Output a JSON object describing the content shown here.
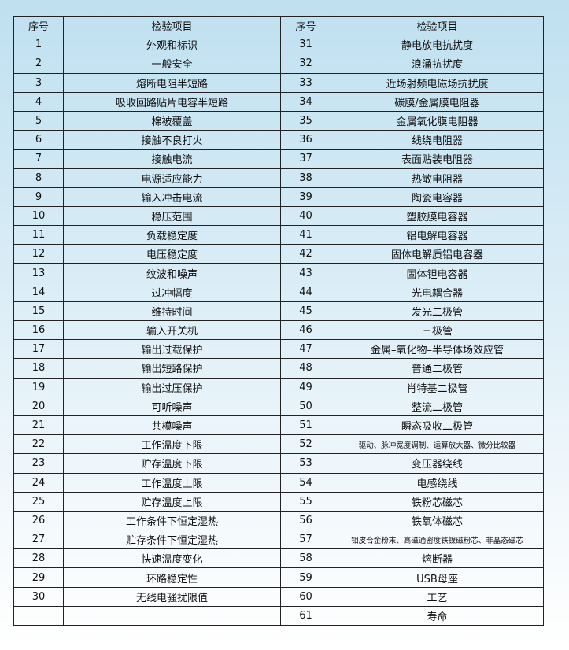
{
  "headers": {
    "no": "序号",
    "item": "检验项目"
  },
  "rows": [
    [
      "1",
      "外观和标识",
      "31",
      "静电放电抗扰度"
    ],
    [
      "2",
      "一般安全",
      "32",
      "浪涌抗扰度"
    ],
    [
      "3",
      "熔断电阻半短路",
      "33",
      "近场射频电磁场抗扰度"
    ],
    [
      "4",
      "吸收回路贴片电容半短路",
      "34",
      "碳膜/金属膜电阻器"
    ],
    [
      "5",
      "棉被覆盖",
      "35",
      "金属氧化膜电阻器"
    ],
    [
      "6",
      "接触不良打火",
      "36",
      "线绕电阻器"
    ],
    [
      "7",
      "接触电流",
      "37",
      "表面贴装电阻器"
    ],
    [
      "8",
      "电源适应能力",
      "38",
      "热敏电阻器"
    ],
    [
      "9",
      "输入冲击电流",
      "39",
      "陶瓷电容器"
    ],
    [
      "10",
      "稳压范围",
      "40",
      "塑胶膜电容器"
    ],
    [
      "11",
      "负载稳定度",
      "41",
      "铝电解电容器"
    ],
    [
      "12",
      "电压稳定度",
      "42",
      "固体电解质铝电容器"
    ],
    [
      "13",
      "纹波和噪声",
      "43",
      "固体钽电容器"
    ],
    [
      "14",
      "过冲幅度",
      "44",
      "光电耦合器"
    ],
    [
      "15",
      "维持时间",
      "45",
      "发光二极管"
    ],
    [
      "16",
      "输入开关机",
      "46",
      "三极管"
    ],
    [
      "17",
      "输出过载保护",
      "47",
      "金属–氧化物–半导体场效应管"
    ],
    [
      "18",
      "输出短路保护",
      "48",
      "普通二极管"
    ],
    [
      "19",
      "输出过压保护",
      "49",
      "肖特基二极管"
    ],
    [
      "20",
      "可听噪声",
      "50",
      "整流二极管"
    ],
    [
      "21",
      "共模噪声",
      "51",
      "瞬态吸收二极管"
    ],
    [
      "22",
      "工作温度下限",
      "52",
      "驱动、脉冲宽度调制、运算放大器、微分比较器"
    ],
    [
      "23",
      "贮存温度下限",
      "53",
      "变压器绕线"
    ],
    [
      "24",
      "工作温度上限",
      "54",
      "电感绕线"
    ],
    [
      "25",
      "贮存温度上限",
      "55",
      "铁粉芯磁芯"
    ],
    [
      "26",
      "工作条件下恒定湿热",
      "56",
      "铁氧体磁芯"
    ],
    [
      "27",
      "贮存条件下恒定湿热",
      "57",
      "钼皮合金粉末、高磁通密度铁镍磁粉芯、非晶态磁芯"
    ],
    [
      "28",
      "快速温度变化",
      "58",
      "熔断器"
    ],
    [
      "29",
      "环路稳定性",
      "59",
      "USB母座"
    ],
    [
      "30",
      "无线电骚扰限值",
      "60",
      "工艺"
    ],
    [
      "",
      "",
      "61",
      "寿命"
    ]
  ]
}
